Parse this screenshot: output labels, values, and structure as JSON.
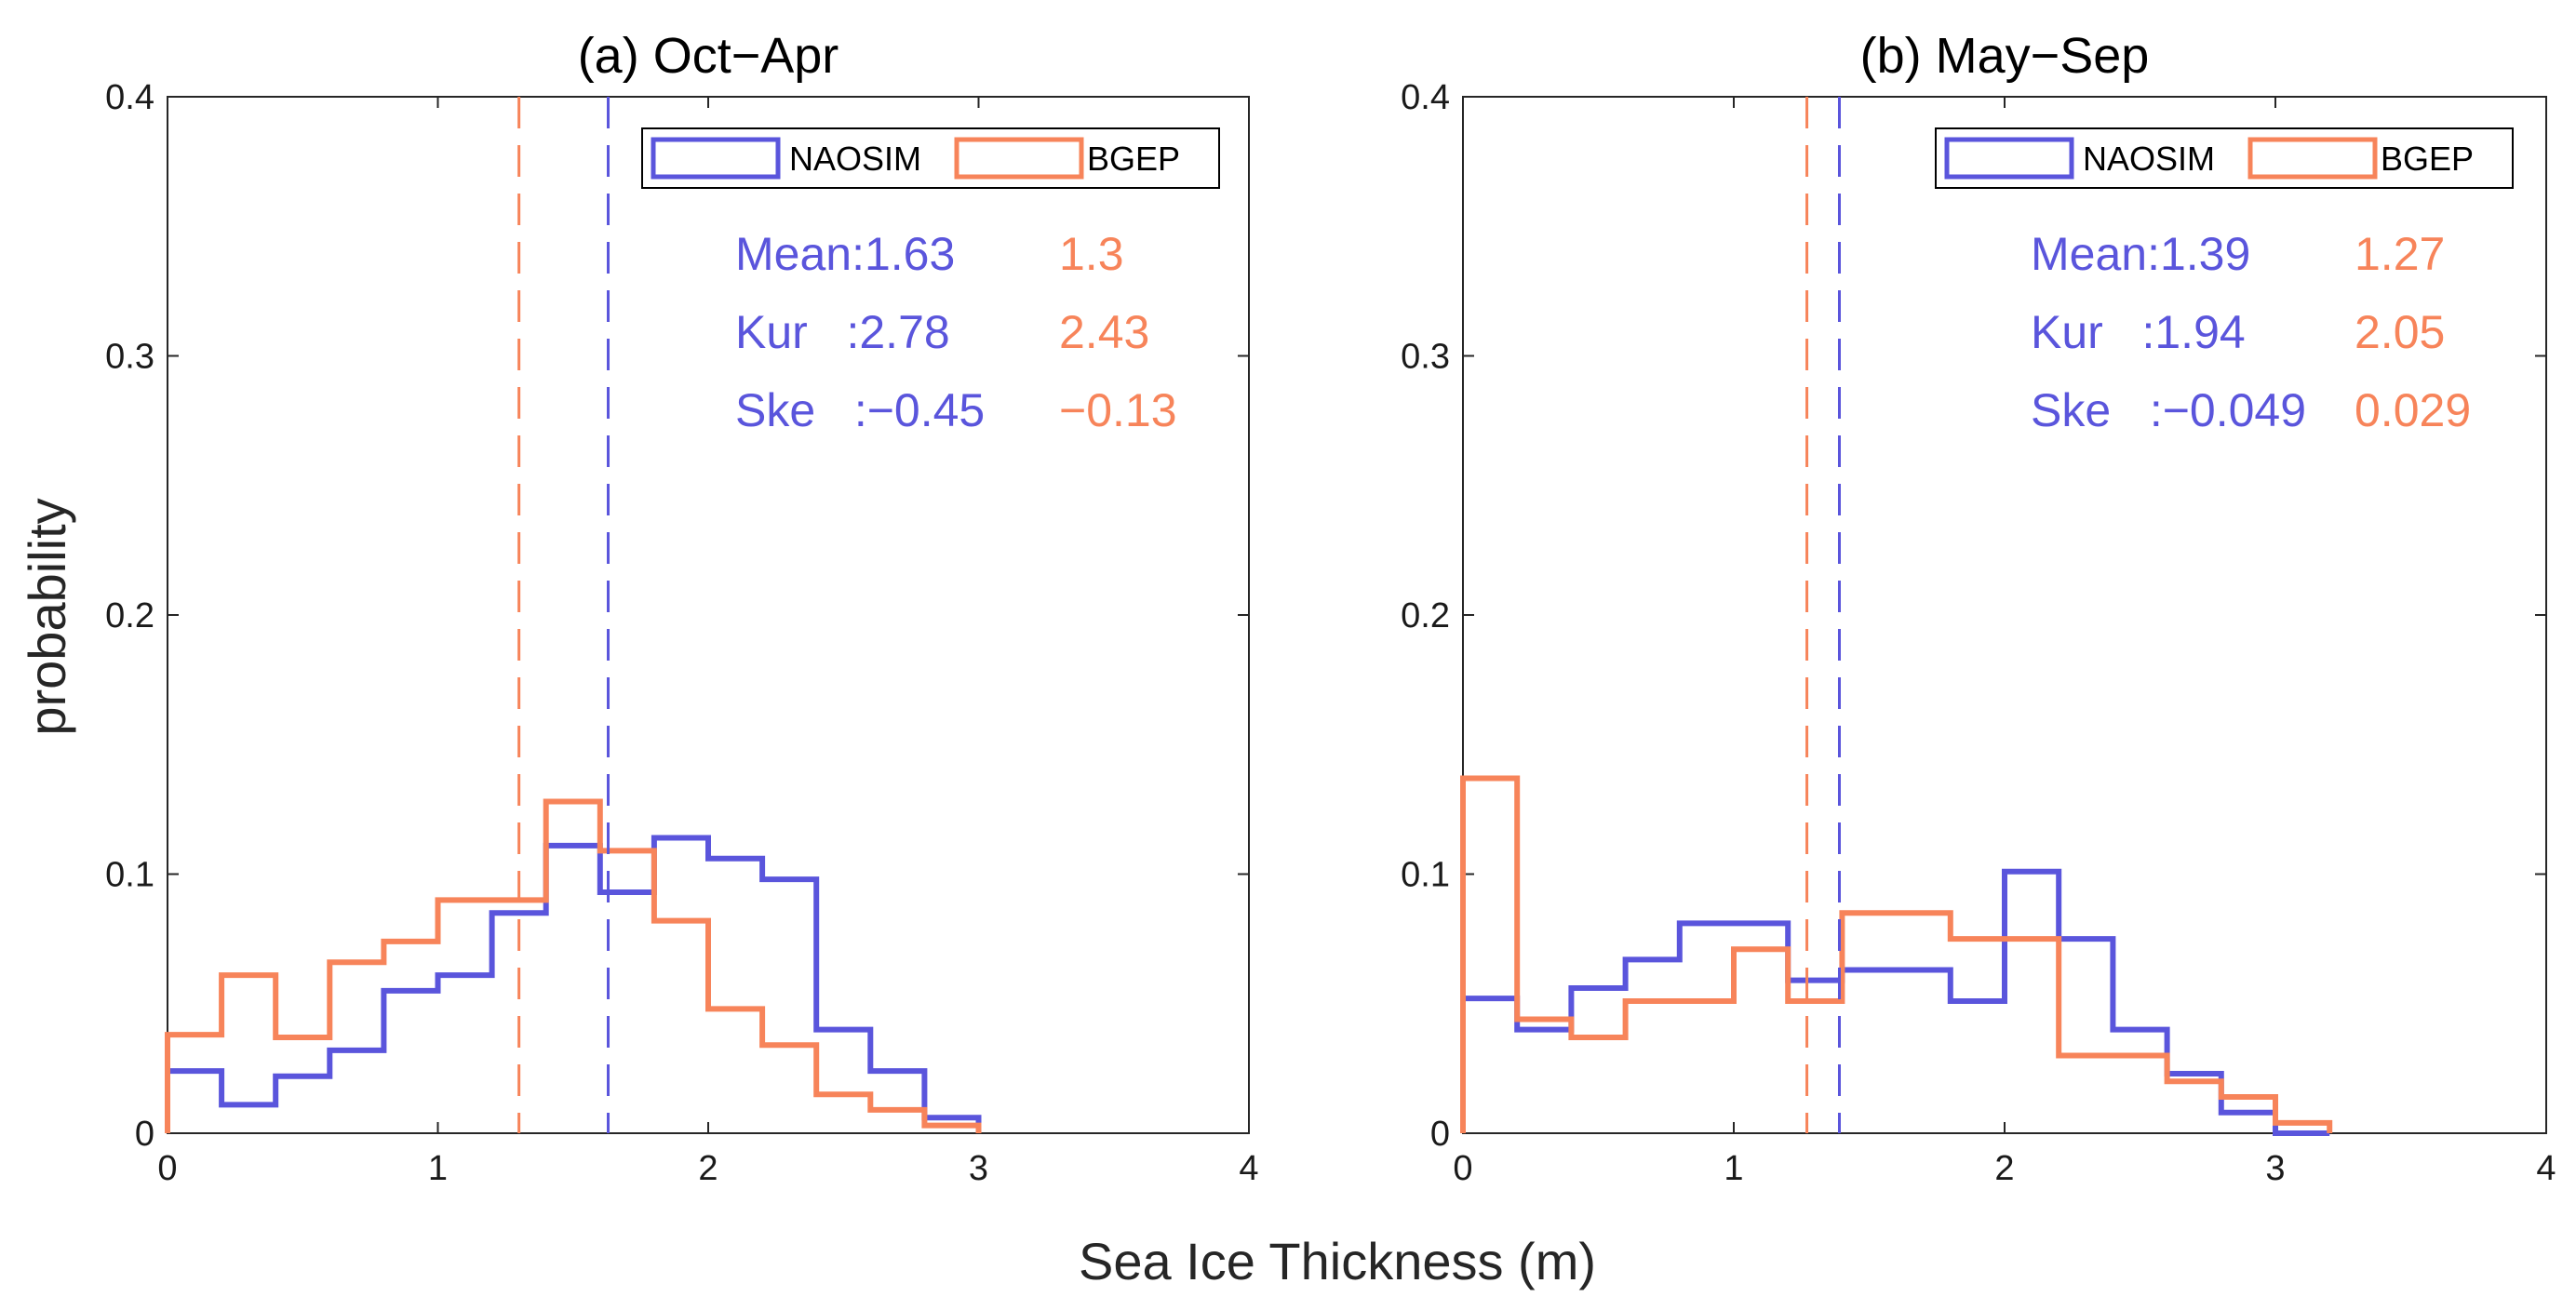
{
  "figure": {
    "xlabel": "Sea Ice Thickness (m)",
    "ylabel": "probability"
  },
  "colors": {
    "NAOSIM": "#5a55dc",
    "BGEP": "#f7845a",
    "axis": "#262626"
  },
  "chart_data": [
    {
      "type": "histogram",
      "title": "(a) Oct−Apr",
      "xlim": [
        0,
        4
      ],
      "ylim": [
        0,
        0.4
      ],
      "xticks": [
        "0",
        "1",
        "2",
        "3",
        "4"
      ],
      "yticks": [
        "0",
        "0.1",
        "0.2",
        "0.3",
        "0.4"
      ],
      "legend": [
        "NAOSIM",
        "BGEP"
      ],
      "bin_edges": [
        0,
        0.2,
        0.4,
        0.6,
        0.8,
        1.0,
        1.2,
        1.4,
        1.6,
        1.8,
        2.0,
        2.2,
        2.4,
        2.6,
        2.8,
        3.0
      ],
      "series": [
        {
          "name": "NAOSIM",
          "values": [
            0.024,
            0.011,
            0.022,
            0.032,
            0.055,
            0.061,
            0.085,
            0.111,
            0.093,
            0.114,
            0.106,
            0.098,
            0.04,
            0.024,
            0.006
          ],
          "mean": 1.63
        },
        {
          "name": "BGEP",
          "values": [
            0.038,
            0.061,
            0.037,
            0.066,
            0.074,
            0.09,
            0.09,
            0.128,
            0.109,
            0.082,
            0.048,
            0.034,
            0.015,
            0.009,
            0.003
          ],
          "mean": 1.3
        }
      ],
      "stats": {
        "labels": [
          "Mean:",
          "Kur   :",
          "Ske   :"
        ],
        "NAOSIM": [
          "1.63",
          "2.78",
          "−0.45"
        ],
        "BGEP": [
          "1.3",
          "2.43",
          "−0.13"
        ]
      }
    },
    {
      "type": "histogram",
      "title": "(b) May−Sep",
      "xlim": [
        0,
        4
      ],
      "ylim": [
        0,
        0.4
      ],
      "xticks": [
        "0",
        "1",
        "2",
        "3",
        "4"
      ],
      "yticks": [
        "0",
        "0.1",
        "0.2",
        "0.3",
        "0.4"
      ],
      "legend": [
        "NAOSIM",
        "BGEP"
      ],
      "bin_edges": [
        0,
        0.2,
        0.4,
        0.6,
        0.8,
        1.0,
        1.2,
        1.4,
        1.6,
        1.8,
        2.0,
        2.2,
        2.4,
        2.6,
        2.8,
        3.0,
        3.2
      ],
      "series": [
        {
          "name": "NAOSIM",
          "values": [
            0.052,
            0.04,
            0.056,
            0.067,
            0.081,
            0.081,
            0.059,
            0.063,
            0.063,
            0.051,
            0.101,
            0.075,
            0.04,
            0.023,
            0.008,
            0.0
          ],
          "mean": 1.39
        },
        {
          "name": "BGEP",
          "values": [
            0.137,
            0.044,
            0.037,
            0.051,
            0.051,
            0.071,
            0.051,
            0.085,
            0.085,
            0.075,
            0.075,
            0.03,
            0.03,
            0.02,
            0.014,
            0.004
          ],
          "mean": 1.27
        }
      ],
      "stats": {
        "labels": [
          "Mean:",
          "Kur   :",
          "Ske   :"
        ],
        "NAOSIM": [
          "1.39",
          "1.94",
          "−0.049"
        ],
        "BGEP": [
          "1.27",
          "2.05",
          "0.029"
        ]
      }
    }
  ]
}
